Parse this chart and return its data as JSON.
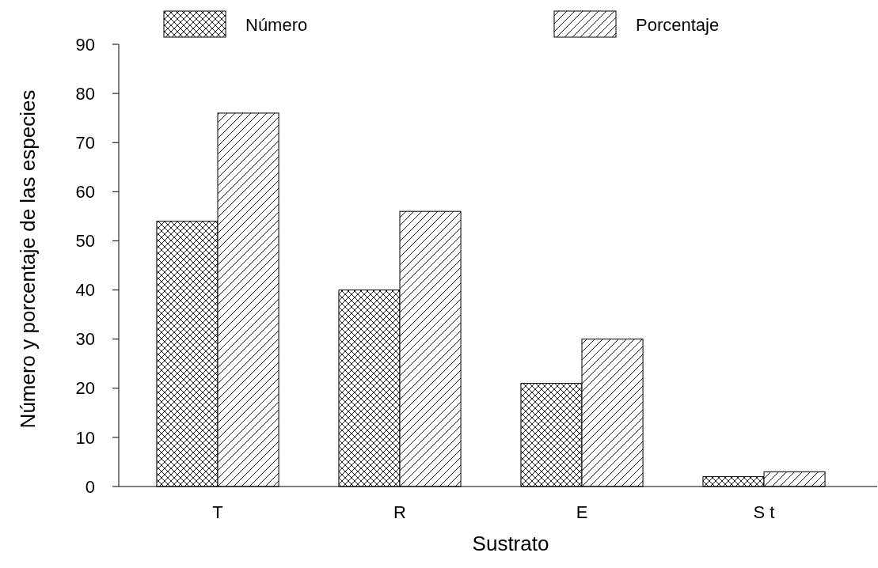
{
  "chart_data": {
    "type": "bar",
    "xlabel": "Sustrato",
    "ylabel": "Número y porcentaje de las especies",
    "categories": [
      "T",
      "R",
      "E",
      "S t"
    ],
    "series": [
      {
        "name": "Número",
        "color": "#000000",
        "values": [
          54,
          40,
          21,
          2
        ]
      },
      {
        "name": "Porcentaje",
        "color": "#000000",
        "values": [
          76,
          56,
          30,
          3
        ]
      }
    ],
    "ylim": [
      0,
      90
    ],
    "yticks": [
      0,
      10,
      20,
      30,
      40,
      50,
      60,
      70,
      80,
      90
    ],
    "grid": false,
    "legend": "top"
  }
}
